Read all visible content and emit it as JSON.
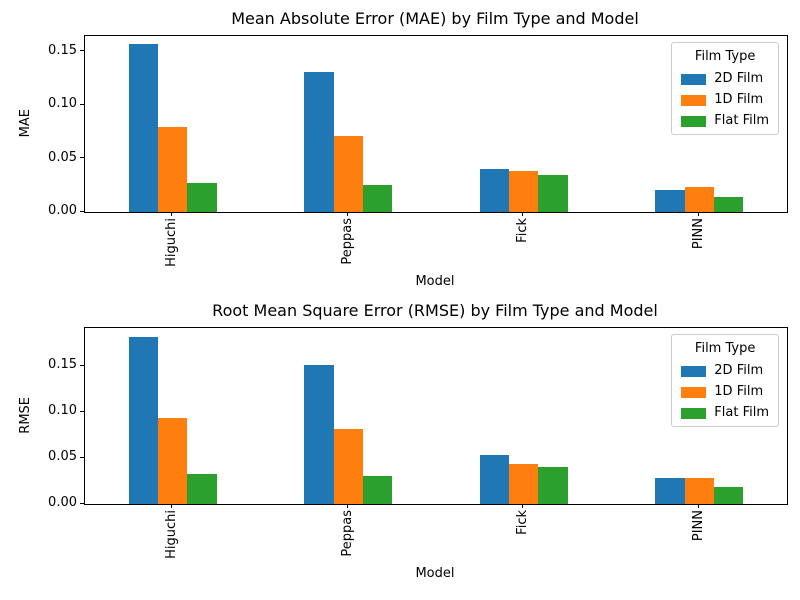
{
  "figure": {
    "background": "#ffffff",
    "text_color": "#000000"
  },
  "chart_data": [
    {
      "type": "bar",
      "title": "Mean Absolute Error (MAE) by Film Type and Model",
      "xlabel": "Model",
      "ylabel": "MAE",
      "categories": [
        "Higuchi",
        "Peppas",
        "Fick",
        "PINN"
      ],
      "series": [
        {
          "name": "2D Film",
          "color": "#1f77b4",
          "values": [
            0.157,
            0.131,
            0.04,
            0.021
          ]
        },
        {
          "name": "1D Film",
          "color": "#ff7f0e",
          "values": [
            0.079,
            0.071,
            0.038,
            0.023
          ]
        },
        {
          "name": "Flat Film",
          "color": "#2ca02c",
          "values": [
            0.027,
            0.025,
            0.035,
            0.014
          ]
        }
      ],
      "ylim": [
        0,
        0.1645
      ],
      "yticks": [
        0,
        0.05,
        0.1,
        0.15
      ],
      "ytick_labels": [
        "0.00",
        "0.05",
        "0.10",
        "0.15"
      ],
      "xtick_rotation": 90,
      "grid": false,
      "legend": {
        "title": "Film Type",
        "entries": [
          "2D Film",
          "1D Film",
          "Flat Film"
        ],
        "position": "upper right"
      }
    },
    {
      "type": "bar",
      "title": "Root Mean Square Error (RMSE) by Film Type and Model",
      "xlabel": "Model",
      "ylabel": "RMSE",
      "categories": [
        "Higuchi",
        "Peppas",
        "Fick",
        "PINN"
      ],
      "series": [
        {
          "name": "2D Film",
          "color": "#1f77b4",
          "values": [
            0.182,
            0.151,
            0.053,
            0.028
          ]
        },
        {
          "name": "1D Film",
          "color": "#ff7f0e",
          "values": [
            0.094,
            0.082,
            0.044,
            0.028
          ]
        },
        {
          "name": "Flat Film",
          "color": "#2ca02c",
          "values": [
            0.033,
            0.03,
            0.04,
            0.018
          ]
        }
      ],
      "ylim": [
        0,
        0.1915
      ],
      "yticks": [
        0,
        0.05,
        0.1,
        0.15
      ],
      "ytick_labels": [
        "0.00",
        "0.05",
        "0.10",
        "0.15"
      ],
      "xtick_rotation": 90,
      "grid": false,
      "legend": {
        "title": "Film Type",
        "entries": [
          "2D Film",
          "1D Film",
          "Flat Film"
        ],
        "position": "upper right"
      }
    }
  ]
}
